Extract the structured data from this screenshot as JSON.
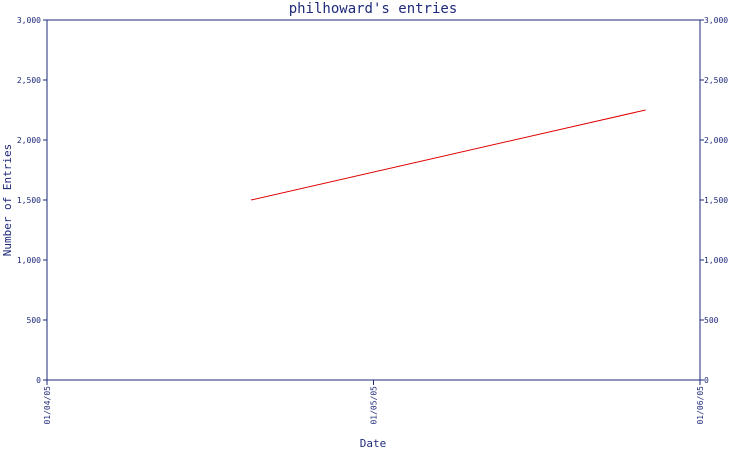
{
  "chart_data": {
    "type": "line",
    "title": "philhoward's entries",
    "xlabel": "Date",
    "ylabel": "Number of Entries",
    "x_ticks": [
      "01/04/05",
      "01/05/05",
      "01/06/05"
    ],
    "xlim": [
      "01/04/05",
      "01/06/05"
    ],
    "ylim": [
      0,
      3000
    ],
    "y_ticks": [
      0,
      500,
      1000,
      1500,
      2000,
      2500,
      3000
    ],
    "y_tick_labels": [
      "0",
      "500",
      "1,000",
      "1,500",
      "2,000",
      "2,500",
      "3,000"
    ],
    "series": [
      {
        "color": "#e00000",
        "points": [
          {
            "x": "2005-01-04T15:00",
            "y": 1500
          },
          {
            "x": "2005-01-05T20:00",
            "y": 2250
          }
        ]
      }
    ],
    "grid": false,
    "right_axis_mirrors_left": true
  },
  "colors": {
    "axis": "#1f2a7a",
    "text": "#1f2a7a",
    "line": "#e00000",
    "background": "#ffffff"
  }
}
